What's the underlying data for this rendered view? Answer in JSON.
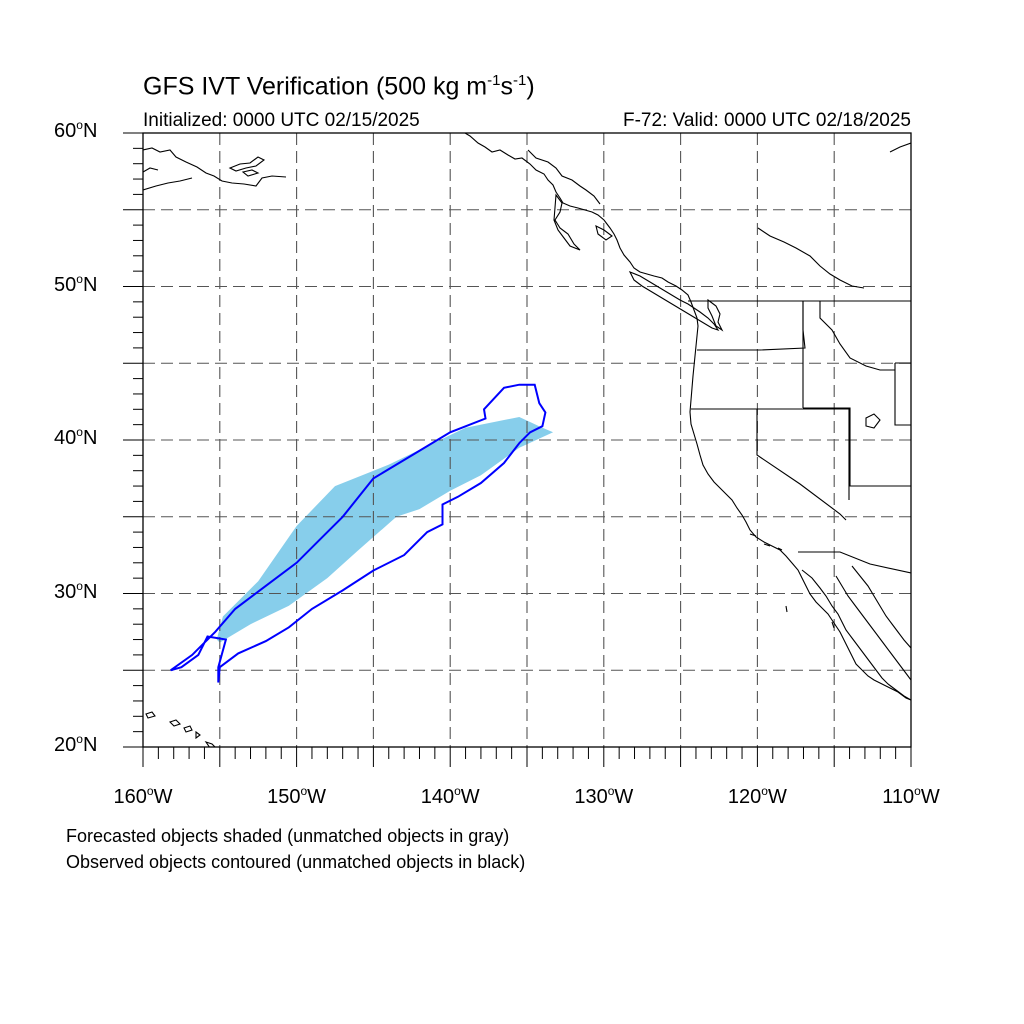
{
  "title_main": "GFS IVT Verification (500 kg m",
  "title_exp1": "-1",
  "title_mid": "s",
  "title_exp2": "-1",
  "title_end": ")",
  "initialized": "Initialized: 0000 UTC 02/15/2025",
  "valid": "F-72: Valid: 0000 UTC 02/18/2025",
  "lat_labels": [
    {
      "num": "60",
      "dir": "N"
    },
    {
      "num": "50",
      "dir": "N"
    },
    {
      "num": "40",
      "dir": "N"
    },
    {
      "num": "30",
      "dir": "N"
    },
    {
      "num": "20",
      "dir": "N"
    }
  ],
  "lon_labels": [
    {
      "num": "160",
      "dir": "W"
    },
    {
      "num": "150",
      "dir": "W"
    },
    {
      "num": "140",
      "dir": "W"
    },
    {
      "num": "130",
      "dir": "W"
    },
    {
      "num": "120",
      "dir": "W"
    },
    {
      "num": "110",
      "dir": "W"
    }
  ],
  "notes": {
    "forecast": "Forecasted objects shaded (unmatched objects in gray)",
    "observed": "Observed objects contoured (unmatched objects in black)"
  },
  "map_extent": {
    "lon": [
      -160,
      -110
    ],
    "lat": [
      20,
      60
    ]
  },
  "gridlines": "dashed every 5 degrees",
  "colors": {
    "forecast_fill": "#87ceeb",
    "observed_contour": "#0000ff",
    "coastline": "#000000",
    "grid": "#555555"
  },
  "forecast_object_lonlat": [
    [
      -155.2,
      27.0
    ],
    [
      -154.8,
      28.5
    ],
    [
      -152.5,
      30.8
    ],
    [
      -150.0,
      34.4
    ],
    [
      -147.5,
      37.0
    ],
    [
      -144.0,
      38.4
    ],
    [
      -141.5,
      39.6
    ],
    [
      -139.0,
      40.8
    ],
    [
      -135.5,
      41.5
    ],
    [
      -134.0,
      40.8
    ],
    [
      -133.3,
      40.5
    ],
    [
      -135.5,
      39.5
    ],
    [
      -138.0,
      37.7
    ],
    [
      -140.0,
      36.7
    ],
    [
      -142.0,
      35.5
    ],
    [
      -143.5,
      35.0
    ],
    [
      -146.0,
      32.8
    ],
    [
      -148.0,
      31.0
    ],
    [
      -150.5,
      29.2
    ],
    [
      -153.0,
      28.0
    ],
    [
      -155.0,
      26.8
    ]
  ],
  "observed_object_lonlat": [
    [
      -158.2,
      25.0
    ],
    [
      -156.8,
      26.0
    ],
    [
      -155.3,
      27.5
    ],
    [
      -154.0,
      29.0
    ],
    [
      -152.0,
      30.5
    ],
    [
      -150.0,
      32.0
    ],
    [
      -148.5,
      33.5
    ],
    [
      -147.0,
      35.0
    ],
    [
      -145.0,
      37.5
    ],
    [
      -142.5,
      39.0
    ],
    [
      -140.0,
      40.5
    ],
    [
      -137.7,
      41.4
    ],
    [
      -137.8,
      42.0
    ],
    [
      -136.5,
      43.4
    ],
    [
      -135.5,
      43.6
    ],
    [
      -134.5,
      43.6
    ],
    [
      -134.2,
      42.4
    ],
    [
      -133.8,
      41.8
    ],
    [
      -134.0,
      40.9
    ],
    [
      -134.8,
      40.5
    ],
    [
      -135.5,
      39.8
    ],
    [
      -136.5,
      38.5
    ],
    [
      -138.0,
      37.2
    ],
    [
      -139.5,
      36.3
    ],
    [
      -140.5,
      35.8
    ],
    [
      -140.5,
      34.5
    ],
    [
      -141.5,
      34.0
    ],
    [
      -143.0,
      32.5
    ],
    [
      -145.0,
      31.5
    ],
    [
      -147.0,
      30.2
    ],
    [
      -149.0,
      29.0
    ],
    [
      -150.5,
      27.8
    ],
    [
      -152.0,
      26.9
    ],
    [
      -153.8,
      26.1
    ],
    [
      -155.0,
      25.2
    ],
    [
      -155.1,
      24.2
    ],
    [
      -155.1,
      25.2
    ],
    [
      -154.6,
      27.0
    ],
    [
      -155.8,
      27.2
    ],
    [
      -156.4,
      26.0
    ],
    [
      -157.5,
      25.2
    ],
    [
      -158.2,
      25.0
    ]
  ]
}
